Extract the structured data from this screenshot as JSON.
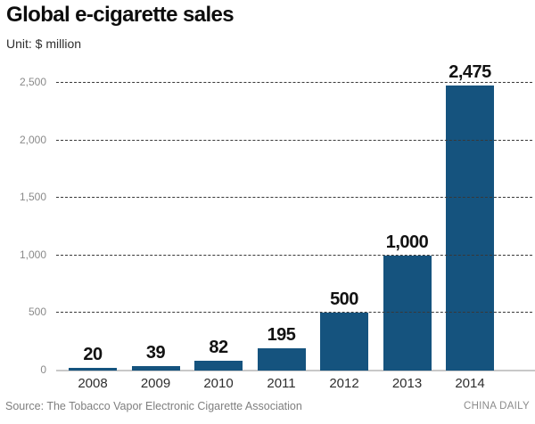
{
  "header": {
    "title": "Global e-cigarette sales",
    "unit": "Unit: $ million"
  },
  "footer": {
    "source": "Source: The Tobacco Vapor Electronic Cigarette Association",
    "credit": "CHINA DAILY"
  },
  "colors": {
    "bar": "#15537E",
    "gridline": "#383838",
    "baseline": "#C8C8C8",
    "ytick_label": "#8A8A8A",
    "xtick_label": "#2E2E2E",
    "value_label": "#121212"
  },
  "chart_data": {
    "type": "bar",
    "title": "Global e-cigarette sales",
    "unit_label": "Unit: $ million",
    "categories": [
      "2008",
      "2009",
      "2010",
      "2011",
      "2012",
      "2013",
      "2014"
    ],
    "values": [
      20,
      39,
      82,
      195,
      500,
      1000,
      2475
    ],
    "value_labels": [
      "20",
      "39",
      "82",
      "195",
      "500",
      "1,000",
      "2,475"
    ],
    "xlabel": "",
    "ylabel": "$ million",
    "ylim": [
      0,
      2500
    ],
    "yticks": [
      0,
      500,
      1000,
      1500,
      2000,
      2500
    ],
    "ytick_labels": [
      "0",
      "500",
      "1,000",
      "1,500",
      "2,000",
      "2,500"
    ],
    "grid": "horizontal-dashed",
    "legend": "none",
    "source": "The Tobacco Vapor Electronic Cigarette Association"
  }
}
